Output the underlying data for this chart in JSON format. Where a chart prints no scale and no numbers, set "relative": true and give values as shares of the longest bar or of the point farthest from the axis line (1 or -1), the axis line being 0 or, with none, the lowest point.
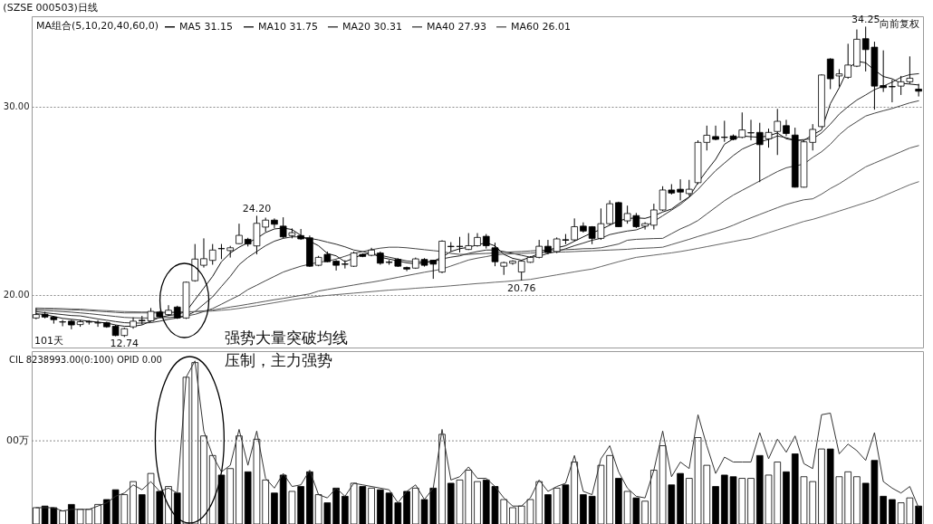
{
  "chart_data": [
    {
      "type": "candlestick",
      "title": "(SZSE 000503)日线",
      "legend_title": "MA组合(5,10,20,40,60,0)",
      "categories": [
        null,
        null,
        null,
        null,
        null,
        null,
        null,
        null,
        null,
        null,
        null,
        null,
        null,
        null,
        null,
        null,
        null,
        null,
        null,
        null,
        null,
        null,
        null,
        null,
        null,
        null,
        null,
        null,
        null,
        null,
        null,
        null,
        null,
        null,
        null,
        null,
        null,
        null,
        null,
        null,
        null,
        null,
        null,
        null,
        null,
        null,
        null,
        null,
        null,
        null,
        null,
        null,
        null,
        null,
        null,
        null,
        null,
        null,
        null,
        null,
        null,
        null,
        null,
        null,
        null,
        null,
        null,
        null,
        null,
        null,
        null,
        null,
        null,
        null,
        null,
        null,
        null,
        null,
        null,
        null,
        null,
        null,
        null,
        null,
        null,
        null,
        null,
        null,
        null,
        null,
        null,
        null,
        null,
        null,
        null,
        null,
        null,
        null,
        null,
        null,
        null
      ],
      "ohlc": [
        [
          18.77,
          19.3,
          18.7,
          18.95
        ],
        [
          18.97,
          19.1,
          18.75,
          18.82
        ],
        [
          18.82,
          18.87,
          18.47,
          18.68
        ],
        [
          18.55,
          18.67,
          18.33,
          18.57
        ],
        [
          18.6,
          18.67,
          18.17,
          18.4
        ],
        [
          18.42,
          18.67,
          18.3,
          18.57
        ],
        [
          18.55,
          18.65,
          18.42,
          18.57
        ],
        [
          18.5,
          18.65,
          18.3,
          18.52
        ],
        [
          18.52,
          18.57,
          18.25,
          18.3
        ],
        [
          18.33,
          18.4,
          17.8,
          17.84
        ],
        [
          17.84,
          18.26,
          17.76,
          18.2
        ],
        [
          18.3,
          18.8,
          18.2,
          18.6
        ],
        [
          18.65,
          18.88,
          18.42,
          18.62
        ],
        [
          18.62,
          19.3,
          18.57,
          19.12
        ],
        [
          19.08,
          19.15,
          18.8,
          18.83
        ],
        [
          18.95,
          19.45,
          18.88,
          19.18
        ],
        [
          19.35,
          19.42,
          18.72,
          18.77
        ],
        [
          18.77,
          20.7,
          18.72,
          20.67
        ],
        [
          20.75,
          22.7,
          20.7,
          21.9
        ],
        [
          21.57,
          23.0,
          21.45,
          21.92
        ],
        [
          21.83,
          22.7,
          21.6,
          22.38
        ],
        [
          22.46,
          22.7,
          21.9,
          22.45
        ],
        [
          22.35,
          22.6,
          21.98,
          22.5
        ],
        [
          22.72,
          23.78,
          22.7,
          23.16
        ],
        [
          22.95,
          23.03,
          22.57,
          22.7
        ],
        [
          22.6,
          24.2,
          22.15,
          23.8
        ],
        [
          23.6,
          24.1,
          23.35,
          23.97
        ],
        [
          23.97,
          24.06,
          23.55,
          23.75
        ],
        [
          23.65,
          24.12,
          23.0,
          23.08
        ],
        [
          23.15,
          23.53,
          23.0,
          23.3
        ],
        [
          23.15,
          23.5,
          22.92,
          22.97
        ],
        [
          23.03,
          23.15,
          21.48,
          21.52
        ],
        [
          21.57,
          22.07,
          21.52,
          21.99
        ],
        [
          22.15,
          22.3,
          21.73,
          21.76
        ],
        [
          21.79,
          21.85,
          21.29,
          21.57
        ],
        [
          21.64,
          21.84,
          21.4,
          21.62
        ],
        [
          21.52,
          22.3,
          21.48,
          22.22
        ],
        [
          22.15,
          22.2,
          22.0,
          22.04
        ],
        [
          22.1,
          22.5,
          22.05,
          22.38
        ],
        [
          22.22,
          22.3,
          21.6,
          21.68
        ],
        [
          21.74,
          21.85,
          21.6,
          21.72
        ],
        [
          21.88,
          21.95,
          21.48,
          21.52
        ],
        [
          21.45,
          21.5,
          21.26,
          21.37
        ],
        [
          21.42,
          21.98,
          21.38,
          21.91
        ],
        [
          21.88,
          21.95,
          21.5,
          21.57
        ],
        [
          21.84,
          21.86,
          20.85,
          21.63
        ],
        [
          21.21,
          22.9,
          21.15,
          22.85
        ],
        [
          22.58,
          22.8,
          22.3,
          22.56
        ],
        [
          22.56,
          23.08,
          22.25,
          22.58
        ],
        [
          22.41,
          23.28,
          22.38,
          22.61
        ],
        [
          22.61,
          23.28,
          22.56,
          23.05
        ],
        [
          23.11,
          23.23,
          22.46,
          22.61
        ],
        [
          22.5,
          22.77,
          21.52,
          21.76
        ],
        [
          21.52,
          21.76,
          21.06,
          21.71
        ],
        [
          21.68,
          21.84,
          21.6,
          21.79
        ],
        [
          21.21,
          21.84,
          20.76,
          21.79
        ],
        [
          21.73,
          22.05,
          21.7,
          21.99
        ],
        [
          21.99,
          22.92,
          21.94,
          22.58
        ],
        [
          22.58,
          22.92,
          22.15,
          22.25
        ],
        [
          22.3,
          23.05,
          22.22,
          22.97
        ],
        [
          22.93,
          23.23,
          22.69,
          22.9
        ],
        [
          22.92,
          24.06,
          22.85,
          23.62
        ],
        [
          23.65,
          23.85,
          23.31,
          23.39
        ],
        [
          23.62,
          23.65,
          22.69,
          23.0
        ],
        [
          23.0,
          24.59,
          22.92,
          23.78
        ],
        [
          23.78,
          25.02,
          23.7,
          24.84
        ],
        [
          24.9,
          24.95,
          23.6,
          23.62
        ],
        [
          23.93,
          24.74,
          23.78,
          24.32
        ],
        [
          24.21,
          24.35,
          23.55,
          23.62
        ],
        [
          23.65,
          23.86,
          23.47,
          23.78
        ],
        [
          23.7,
          24.84,
          23.47,
          24.51
        ],
        [
          24.51,
          25.77,
          24.45,
          25.57
        ],
        [
          25.57,
          25.88,
          25.33,
          25.41
        ],
        [
          25.61,
          26.14,
          25.02,
          25.46
        ],
        [
          25.38,
          26.11,
          25.26,
          25.61
        ],
        [
          25.96,
          28.21,
          25.88,
          28.1
        ],
        [
          28.1,
          28.99,
          27.67,
          28.48
        ],
        [
          28.41,
          28.99,
          28.21,
          28.26
        ],
        [
          28.38,
          29.25,
          28.13,
          28.36
        ],
        [
          28.44,
          28.52,
          28.21,
          28.26
        ],
        [
          28.37,
          29.69,
          28.32,
          28.76
        ],
        [
          28.6,
          29.3,
          28.21,
          28.62
        ],
        [
          28.63,
          29.14,
          25.99,
          27.98
        ],
        [
          28.29,
          28.83,
          27.82,
          28.63
        ],
        [
          28.68,
          29.88,
          27.43,
          29.22
        ],
        [
          28.99,
          29.3,
          28.44,
          28.57
        ],
        [
          28.49,
          28.88,
          25.7,
          25.72
        ],
        [
          25.72,
          28.21,
          25.7,
          28.13
        ],
        [
          28.1,
          29.07,
          27.67,
          28.79
        ],
        [
          28.94,
          31.72,
          28.91,
          31.68
        ],
        [
          32.53,
          32.57,
          30.93,
          31.48
        ],
        [
          31.63,
          31.99,
          31.06,
          31.74
        ],
        [
          31.56,
          33.34,
          31.48,
          32.21
        ],
        [
          32.15,
          34.1,
          32.1,
          33.58
        ],
        [
          33.61,
          34.25,
          31.87,
          33.03
        ],
        [
          33.16,
          33.45,
          29.84,
          31.09
        ],
        [
          31.12,
          32.99,
          30.78,
          31.01
        ],
        [
          31.07,
          31.43,
          30.23,
          31.05
        ],
        [
          31.09,
          31.63,
          30.62,
          31.32
        ],
        [
          31.32,
          32.67,
          31.21,
          31.51
        ],
        [
          30.93,
          31.21,
          30.54,
          30.82
        ]
      ],
      "colors": [
        "#ffffff",
        "#000000",
        "#000000",
        "#ffffff",
        "#000000",
        "#ffffff",
        "#ffffff",
        "#ffffff",
        "#000000",
        "#000000",
        "#ffffff",
        "#ffffff",
        "#000000",
        "#ffffff",
        "#000000",
        "#ffffff",
        "#000000",
        "#ffffff",
        "#ffffff",
        "#ffffff",
        "#ffffff",
        "#000000",
        "#ffffff",
        "#ffffff",
        "#000000",
        "#ffffff",
        "#ffffff",
        "#000000",
        "#000000",
        "#ffffff",
        "#000000",
        "#000000",
        "#ffffff",
        "#000000",
        "#000000",
        "#000000",
        "#ffffff",
        "#000000",
        "#ffffff",
        "#000000",
        "#000000",
        "#000000",
        "#000000",
        "#ffffff",
        "#000000",
        "#000000",
        "#ffffff",
        "#000000",
        "#ffffff",
        "#ffffff",
        "#ffffff",
        "#000000",
        "#000000",
        "#ffffff",
        "#ffffff",
        "#ffffff",
        "#ffffff",
        "#ffffff",
        "#000000",
        "#ffffff",
        "#000000",
        "#ffffff",
        "#000000",
        "#000000",
        "#ffffff",
        "#ffffff",
        "#000000",
        "#ffffff",
        "#000000",
        "#ffffff",
        "#ffffff",
        "#ffffff",
        "#000000",
        "#000000",
        "#ffffff",
        "#ffffff",
        "#ffffff",
        "#000000",
        "#000000",
        "#000000",
        "#ffffff",
        "#ffffff",
        "#000000",
        "#ffffff",
        "#ffffff",
        "#000000",
        "#000000",
        "#ffffff",
        "#ffffff",
        "#ffffff",
        "#000000",
        "#ffffff",
        "#ffffff",
        "#ffffff",
        "#000000",
        "#000000",
        "#000000",
        "#000000",
        "#ffffff",
        "#ffffff",
        "#000000"
      ],
      "series": [
        {
          "name": "MA5 31.15",
          "type": "line",
          "color": "#111111",
          "values": [
            19.0,
            18.95,
            18.85,
            18.75,
            18.7,
            18.65,
            18.6,
            18.55,
            18.5,
            18.4,
            18.33,
            18.33,
            18.4,
            18.6,
            18.8,
            18.9,
            18.96,
            19.11,
            19.74,
            20.36,
            20.98,
            21.76,
            22.22,
            22.53,
            22.77,
            23.0,
            23.31,
            23.5,
            23.55,
            23.47,
            23.16,
            22.85,
            22.61,
            22.2,
            22.07,
            21.76,
            21.95,
            22.15,
            22.2,
            22.0,
            21.9,
            21.8,
            21.7,
            21.65,
            21.7,
            21.79,
            22.0,
            22.3,
            22.45,
            22.53,
            22.65,
            22.77,
            22.6,
            22.15,
            21.94,
            21.84,
            22.0,
            22.2,
            22.38,
            22.5,
            22.61,
            22.85,
            23.08,
            23.3,
            23.47,
            23.7,
            23.93,
            24.05,
            24.09,
            24.06,
            24.2,
            24.4,
            24.56,
            24.9,
            25.2,
            25.96,
            26.6,
            27.2,
            28.0,
            28.29,
            28.44,
            28.4,
            28.37,
            28.45,
            28.6,
            28.29,
            28.21,
            28.21,
            28.5,
            28.76,
            30.16,
            31.0,
            32.0,
            32.41,
            32.33,
            31.94,
            31.6,
            31.48,
            31.24,
            31.2,
            31.15
          ]
        },
        {
          "name": "MA10 31.75",
          "type": "line",
          "color": "#2a2a2a",
          "values": [
            19.11,
            19.05,
            19.0,
            18.95,
            18.9,
            18.88,
            18.8,
            18.72,
            18.65,
            18.58,
            18.52,
            18.5,
            18.5,
            18.52,
            18.6,
            18.7,
            18.77,
            18.88,
            19.11,
            19.5,
            19.89,
            20.44,
            20.98,
            21.6,
            21.99,
            22.3,
            22.61,
            22.85,
            23.0,
            23.08,
            23.08,
            23.0,
            22.92,
            22.8,
            22.69,
            22.55,
            22.38,
            22.3,
            22.2,
            22.1,
            22.0,
            21.9,
            21.8,
            21.76,
            21.76,
            21.76,
            21.91,
            22.0,
            22.07,
            22.2,
            22.3,
            22.38,
            22.38,
            22.3,
            22.2,
            22.1,
            22.0,
            22.05,
            22.2,
            22.3,
            22.45,
            22.61,
            22.75,
            22.9,
            23.0,
            23.2,
            23.3,
            23.39,
            23.45,
            23.62,
            23.9,
            24.2,
            24.5,
            24.8,
            25.18,
            25.6,
            26.11,
            26.6,
            27.0,
            27.4,
            27.74,
            27.95,
            28.13,
            28.25,
            28.44,
            28.35,
            28.21,
            28.25,
            28.29,
            28.6,
            29.07,
            29.6,
            30.0,
            30.35,
            30.62,
            30.9,
            31.09,
            31.3,
            31.56,
            31.7,
            31.75
          ]
        },
        {
          "name": "MA20 30.31",
          "type": "line",
          "color": "#444444",
          "values": [
            19.19,
            19.17,
            19.14,
            19.11,
            19.08,
            19.04,
            19.0,
            18.95,
            18.9,
            18.85,
            18.8,
            18.78,
            18.77,
            18.77,
            18.77,
            18.8,
            18.83,
            18.88,
            18.96,
            19.11,
            19.27,
            19.5,
            19.74,
            19.97,
            20.28,
            20.51,
            20.75,
            20.98,
            21.21,
            21.37,
            21.52,
            21.63,
            21.73,
            21.79,
            21.9,
            22.05,
            22.2,
            22.3,
            22.4,
            22.48,
            22.53,
            22.53,
            22.5,
            22.45,
            22.4,
            22.35,
            22.3,
            22.2,
            22.15,
            22.15,
            22.18,
            22.2,
            22.22,
            22.25,
            22.28,
            22.3,
            22.33,
            22.36,
            22.38,
            22.38,
            22.4,
            22.42,
            22.45,
            22.46,
            22.5,
            22.6,
            22.7,
            22.9,
            22.95,
            22.97,
            22.99,
            23.0,
            23.25,
            23.5,
            23.7,
            23.95,
            24.3,
            24.65,
            25.0,
            25.3,
            25.55,
            25.8,
            26.05,
            26.3,
            26.55,
            26.75,
            26.85,
            26.95,
            27.3,
            27.6,
            28.0,
            28.5,
            28.9,
            29.2,
            29.5,
            29.65,
            29.78,
            29.9,
            30.05,
            30.2,
            30.31
          ]
        },
        {
          "name": "MA40 27.93",
          "type": "line",
          "color": "#555555",
          "values": [
            19.27,
            19.26,
            19.24,
            19.22,
            19.2,
            19.19,
            19.16,
            19.13,
            19.1,
            19.07,
            19.04,
            19.04,
            19.04,
            19.04,
            19.04,
            19.04,
            19.05,
            19.07,
            19.11,
            19.15,
            19.19,
            19.27,
            19.35,
            19.42,
            19.5,
            19.58,
            19.66,
            19.74,
            19.81,
            19.89,
            19.97,
            20.05,
            20.2,
            20.28,
            20.36,
            20.44,
            20.52,
            20.6,
            20.67,
            20.75,
            20.84,
            20.93,
            21.02,
            21.11,
            21.2,
            21.28,
            21.37,
            21.53,
            21.69,
            21.85,
            21.95,
            22.03,
            22.12,
            22.16,
            22.18,
            22.2,
            22.22,
            22.24,
            22.26,
            22.27,
            22.28,
            22.3,
            22.32,
            22.34,
            22.36,
            22.38,
            22.4,
            22.42,
            22.46,
            22.48,
            22.5,
            22.53,
            22.67,
            22.81,
            22.95,
            23.1,
            23.24,
            23.38,
            23.52,
            23.7,
            23.9,
            24.09,
            24.27,
            24.45,
            24.63,
            24.8,
            24.93,
            25.05,
            25.1,
            25.35,
            25.65,
            25.9,
            26.2,
            26.5,
            26.8,
            27.0,
            27.2,
            27.4,
            27.6,
            27.8,
            27.93
          ]
        },
        {
          "name": "MA60 26.01",
          "type": "line",
          "color": "#666666",
          "values": [
            19.3,
            19.29,
            19.28,
            19.27,
            19.25,
            19.24,
            19.21,
            19.18,
            19.16,
            19.13,
            19.11,
            19.1,
            19.09,
            19.09,
            19.08,
            19.08,
            19.09,
            19.1,
            19.11,
            19.12,
            19.14,
            19.18,
            19.22,
            19.28,
            19.35,
            19.42,
            19.5,
            19.58,
            19.66,
            19.74,
            19.81,
            19.87,
            19.92,
            19.97,
            20.01,
            20.05,
            20.09,
            20.13,
            20.17,
            20.21,
            20.25,
            20.28,
            20.31,
            20.35,
            20.38,
            20.41,
            20.44,
            20.48,
            20.52,
            20.56,
            20.6,
            20.63,
            20.67,
            20.7,
            20.74,
            20.78,
            20.82,
            20.9,
            20.98,
            21.06,
            21.14,
            21.22,
            21.3,
            21.37,
            21.5,
            21.63,
            21.76,
            21.88,
            21.99,
            22.05,
            22.11,
            22.17,
            22.23,
            22.3,
            22.38,
            22.47,
            22.56,
            22.65,
            22.74,
            22.83,
            22.92,
            23.0,
            23.15,
            23.3,
            23.45,
            23.6,
            23.75,
            23.9,
            24.01,
            24.15,
            24.3,
            24.45,
            24.6,
            24.75,
            24.9,
            25.05,
            25.25,
            25.45,
            25.65,
            25.85,
            26.01
          ]
        }
      ],
      "ylim": [
        17.2,
        34.8
      ],
      "yticks": [
        {
          "value": 30,
          "label": "30.00"
        },
        {
          "value": 20,
          "label": "20.00"
        }
      ],
      "grid": "y",
      "legend": "top left",
      "tick_labels": "y",
      "annotations": [
        "强势大量突破均线",
        "101天",
        "12.74",
        {
          "text": "24.20",
          "y": 24.2
        },
        {
          "text": "20.76",
          "y": 20.76
        },
        {
          "text": "34.25",
          "y": 34.25
        },
        "向前复权"
      ]
    },
    {
      "type": "bar",
      "title": "CIL 8238993.00(0:100) OPID 0.00",
      "categories": [
        null,
        null,
        null,
        null,
        null,
        null,
        null,
        null,
        null,
        null,
        null,
        null,
        null,
        null,
        null,
        null,
        null,
        null,
        null,
        null,
        null,
        null,
        null,
        null,
        null,
        null,
        null,
        null,
        null,
        null,
        null,
        null,
        null,
        null,
        null,
        null,
        null,
        null,
        null,
        null,
        null,
        null,
        null,
        null,
        null,
        null,
        null,
        null,
        null,
        null,
        null,
        null,
        null,
        null,
        null,
        null,
        null,
        null,
        null,
        null,
        null,
        null,
        null,
        null,
        null,
        null,
        null,
        null,
        null,
        null,
        null,
        null,
        null,
        null,
        null,
        null,
        null,
        null,
        null,
        null,
        null,
        null,
        null,
        null,
        null,
        null,
        null,
        null,
        null,
        null,
        null,
        null,
        null,
        null,
        null,
        null,
        null,
        null,
        null,
        null,
        null
      ],
      "relative": true,
      "series": [
        {
          "type": "bar",
          "colors": [
            "#ffffff",
            "#000000",
            "#000000",
            "#ffffff",
            "#000000",
            "#ffffff",
            "#ffffff",
            "#ffffff",
            "#000000",
            "#000000",
            "#ffffff",
            "#ffffff",
            "#000000",
            "#ffffff",
            "#000000",
            "#ffffff",
            "#000000",
            "#ffffff",
            "#ffffff",
            "#ffffff",
            "#ffffff",
            "#000000",
            "#ffffff",
            "#ffffff",
            "#000000",
            "#ffffff",
            "#ffffff",
            "#000000",
            "#000000",
            "#ffffff",
            "#000000",
            "#000000",
            "#ffffff",
            "#000000",
            "#000000",
            "#000000",
            "#ffffff",
            "#000000",
            "#ffffff",
            "#000000",
            "#000000",
            "#000000",
            "#000000",
            "#ffffff",
            "#000000",
            "#000000",
            "#ffffff",
            "#000000",
            "#ffffff",
            "#ffffff",
            "#ffffff",
            "#000000",
            "#000000",
            "#ffffff",
            "#ffffff",
            "#ffffff",
            "#ffffff",
            "#ffffff",
            "#000000",
            "#ffffff",
            "#000000",
            "#ffffff",
            "#000000",
            "#000000",
            "#ffffff",
            "#ffffff",
            "#000000",
            "#ffffff",
            "#000000",
            "#ffffff",
            "#ffffff",
            "#ffffff",
            "#000000",
            "#000000",
            "#ffffff",
            "#ffffff",
            "#ffffff",
            "#000000",
            "#000000",
            "#000000",
            "#ffffff",
            "#ffffff",
            "#000000",
            "#ffffff",
            "#ffffff",
            "#000000",
            "#000000",
            "#ffffff",
            "#ffffff",
            "#ffffff",
            "#000000",
            "#ffffff",
            "#ffffff",
            "#ffffff",
            "#000000",
            "#000000",
            "#000000",
            "#000000",
            "#ffffff",
            "#ffffff",
            "#000000"
          ],
          "values": [
            0.1,
            0.11,
            0.1,
            0.08,
            0.12,
            0.09,
            0.09,
            0.12,
            0.15,
            0.21,
            0.18,
            0.26,
            0.18,
            0.31,
            0.2,
            0.23,
            0.19,
            0.9,
            0.99,
            0.54,
            0.42,
            0.3,
            0.34,
            0.54,
            0.32,
            0.52,
            0.27,
            0.19,
            0.3,
            0.2,
            0.23,
            0.32,
            0.18,
            0.13,
            0.22,
            0.17,
            0.25,
            0.23,
            0.22,
            0.21,
            0.19,
            0.13,
            0.2,
            0.22,
            0.15,
            0.22,
            0.55,
            0.25,
            0.27,
            0.33,
            0.26,
            0.27,
            0.23,
            0.15,
            0.1,
            0.11,
            0.15,
            0.26,
            0.18,
            0.22,
            0.24,
            0.38,
            0.18,
            0.17,
            0.36,
            0.42,
            0.28,
            0.2,
            0.16,
            0.14,
            0.33,
            0.48,
            0.24,
            0.31,
            0.28,
            0.53,
            0.36,
            0.23,
            0.3,
            0.29,
            0.28,
            0.28,
            0.42,
            0.3,
            0.38,
            0.32,
            0.43,
            0.29,
            0.26,
            0.46,
            0.46,
            0.29,
            0.32,
            0.29,
            0.25,
            0.39,
            0.17,
            0.15,
            0.13,
            0.16,
            0.11
          ]
        },
        {
          "type": "line",
          "color": "#333333",
          "values": [
            0.1,
            0.1,
            0.1,
            0.08,
            0.09,
            0.09,
            0.09,
            0.11,
            0.13,
            0.17,
            0.19,
            0.24,
            0.21,
            0.26,
            0.2,
            0.22,
            0.19,
            0.9,
            1.0,
            0.57,
            0.42,
            0.32,
            0.36,
            0.58,
            0.36,
            0.57,
            0.28,
            0.22,
            0.31,
            0.23,
            0.24,
            0.33,
            0.18,
            0.16,
            0.22,
            0.17,
            0.25,
            0.24,
            0.23,
            0.22,
            0.21,
            0.13,
            0.2,
            0.24,
            0.15,
            0.22,
            0.58,
            0.27,
            0.29,
            0.35,
            0.28,
            0.28,
            0.23,
            0.16,
            0.11,
            0.11,
            0.16,
            0.27,
            0.2,
            0.23,
            0.25,
            0.42,
            0.2,
            0.18,
            0.4,
            0.48,
            0.32,
            0.22,
            0.17,
            0.16,
            0.33,
            0.57,
            0.29,
            0.38,
            0.34,
            0.67,
            0.48,
            0.31,
            0.41,
            0.38,
            0.38,
            0.38,
            0.56,
            0.4,
            0.52,
            0.44,
            0.54,
            0.37,
            0.34,
            0.67,
            0.68,
            0.43,
            0.49,
            0.45,
            0.39,
            0.56,
            0.26,
            0.22,
            0.19,
            0.23,
            0.1
          ]
        }
      ],
      "ref_lines": [
        {
          "axis": "y",
          "value": 0.51,
          "label": "00万",
          "line_style": "dotted",
          "color": "#888888"
        }
      ],
      "tick_labels": false,
      "annotations": [
        "压制，主力强势"
      ]
    }
  ]
}
